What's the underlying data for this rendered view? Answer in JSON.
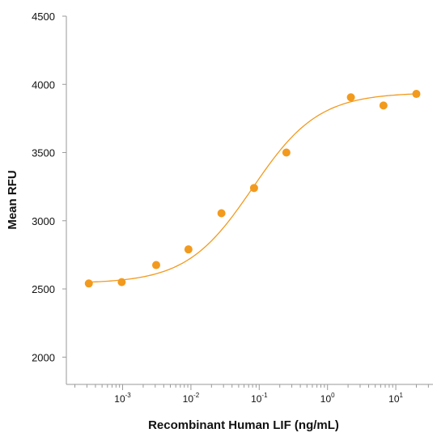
{
  "chart_data": {
    "type": "scatter",
    "title": "",
    "xlabel": "Recombinant Human LIF (ng/mL)",
    "ylabel": "Mean RFU",
    "x_scale": "log",
    "xlim": [
      0.00015,
      35
    ],
    "ylim": [
      1800,
      4500
    ],
    "y_ticks": [
      2000,
      2500,
      3000,
      3500,
      4000,
      4500
    ],
    "x_ticks": [
      {
        "value": 0.001,
        "base": "10",
        "exp": "-3"
      },
      {
        "value": 0.01,
        "base": "10",
        "exp": "-2"
      },
      {
        "value": 0.1,
        "base": "10",
        "exp": "-1"
      },
      {
        "value": 1,
        "base": "10",
        "exp": "0"
      },
      {
        "value": 10,
        "base": "10",
        "exp": "1"
      }
    ],
    "series": [
      {
        "color": "#F29A1E",
        "x": [
          0.00032,
          0.00097,
          0.0031,
          0.0092,
          0.028,
          0.084,
          0.25,
          2.2,
          6.6,
          20
        ],
        "y": [
          2540,
          2550,
          2675,
          2790,
          3055,
          3240,
          3500,
          3905,
          3845,
          3930
        ]
      }
    ],
    "fit_curve": {
      "color": "#F29A1E",
      "model": "4PL",
      "bottom": 2540,
      "top": 3940,
      "ec50": 0.08,
      "hill": 0.9
    },
    "grid": false,
    "legend": "none"
  }
}
